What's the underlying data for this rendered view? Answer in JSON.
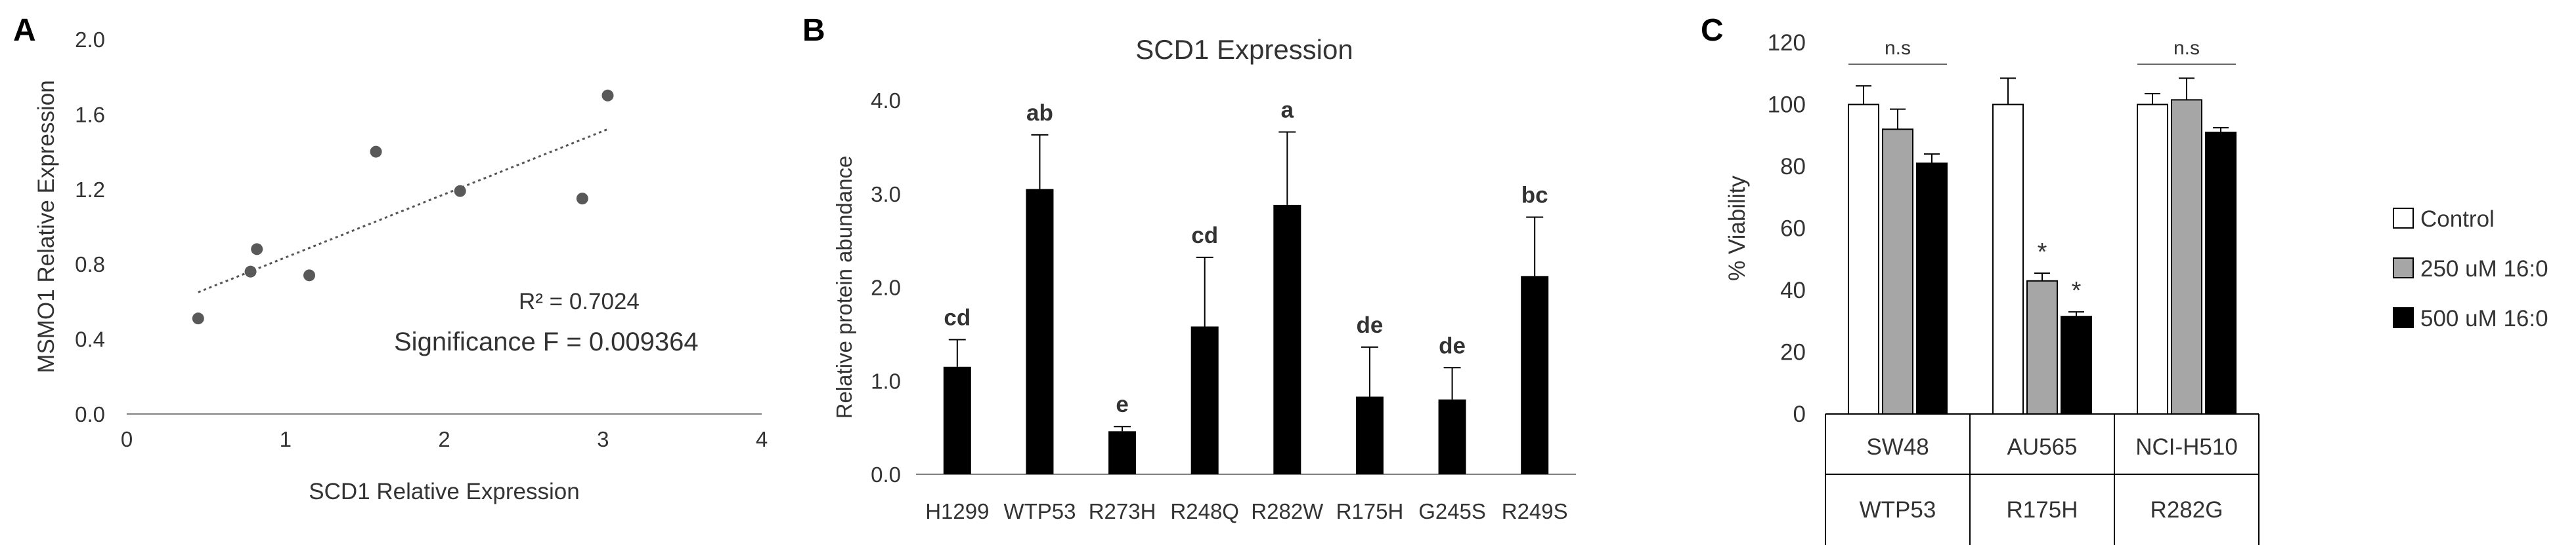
{
  "colors": {
    "axis": "#808080",
    "text": "#333333",
    "bar_black": "#000000",
    "bar_grey": "#a6a6a6",
    "bar_white": "#ffffff",
    "point": "#595959"
  },
  "chart_data": [
    {
      "panel": "A",
      "type": "scatter",
      "xlabel": "SCD1 Relative Expression",
      "ylabel": "MSMO1 Relative Expression",
      "xlim": [
        0,
        4
      ],
      "ylim": [
        0,
        2.0
      ],
      "xticks": [
        "0",
        "1",
        "2",
        "3",
        "4"
      ],
      "yticks": [
        "0.0",
        "0.4",
        "0.8",
        "1.2",
        "1.6",
        "2.0"
      ],
      "points": [
        {
          "x": 0.45,
          "y": 0.51
        },
        {
          "x": 0.78,
          "y": 0.76
        },
        {
          "x": 0.82,
          "y": 0.88
        },
        {
          "x": 1.15,
          "y": 0.74
        },
        {
          "x": 1.57,
          "y": 1.4
        },
        {
          "x": 2.1,
          "y": 1.19
        },
        {
          "x": 2.87,
          "y": 1.15
        },
        {
          "x": 3.03,
          "y": 1.7
        }
      ],
      "trendline": {
        "x": [
          0.45,
          3.03
        ],
        "y": [
          0.65,
          1.52
        ]
      },
      "annotations": [
        "R² = 0.7024",
        "Significance F = 0.009364"
      ],
      "grid": false
    },
    {
      "panel": "B",
      "type": "bar",
      "title": "SCD1 Expression",
      "ylabel": "Relative protein abundance",
      "ylim": [
        0,
        4.0
      ],
      "yticks": [
        "0.0",
        "1.0",
        "2.0",
        "3.0",
        "4.0"
      ],
      "categories": [
        "H1299",
        "WTP53",
        "R273H",
        "R248Q",
        "R282W",
        "R175H",
        "G245S",
        "R249S"
      ],
      "values": [
        1.15,
        3.05,
        0.46,
        1.58,
        2.88,
        0.83,
        0.8,
        2.12
      ],
      "errors": [
        0.29,
        0.58,
        0.05,
        0.74,
        0.78,
        0.53,
        0.34,
        0.63
      ],
      "letters": [
        "cd",
        "ab",
        "e",
        "cd",
        "a",
        "de",
        "de",
        "bc"
      ],
      "grid": false
    },
    {
      "panel": "C",
      "type": "bar",
      "ylabel": "% Viability",
      "ylim": [
        0,
        120
      ],
      "yticks": [
        "0",
        "20",
        "40",
        "60",
        "80",
        "100",
        "120"
      ],
      "groups": [
        {
          "line1": "SW48",
          "line2": "WTP53"
        },
        {
          "line1": "AU565",
          "line2": "R175H"
        },
        {
          "line1": "NCI-H510",
          "line2": "R282G"
        }
      ],
      "series": [
        {
          "name": "Control",
          "color": "#ffffff",
          "values": [
            100,
            100,
            100
          ],
          "errors": [
            6,
            8.5,
            3.5
          ]
        },
        {
          "name": "250 uM 16:0",
          "color": "#a6a6a6",
          "values": [
            92,
            43,
            101.5
          ],
          "errors": [
            6.5,
            2.5,
            7
          ]
        },
        {
          "name": "500 uM 16:0",
          "color": "#000000",
          "values": [
            81,
            31.5,
            91
          ],
          "errors": [
            3,
            1.5,
            1.5
          ]
        }
      ],
      "significance": [
        {
          "group": 0,
          "label": "n.s"
        },
        {
          "group": 1,
          "series": 1,
          "label": "*"
        },
        {
          "group": 1,
          "series": 2,
          "label": "*"
        },
        {
          "group": 2,
          "label": "n.s"
        }
      ],
      "legend_position": "right",
      "grid": false
    }
  ]
}
